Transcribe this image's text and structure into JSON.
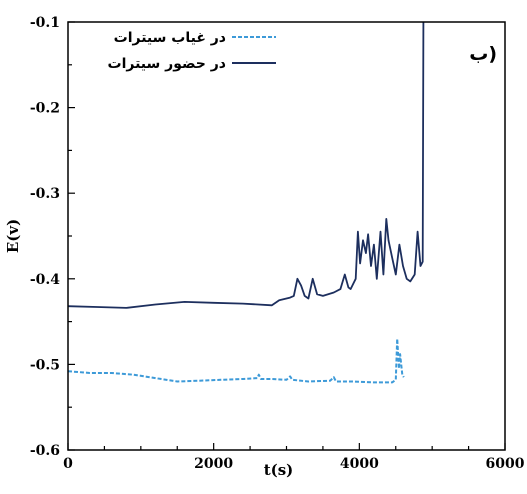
{
  "chart_data": {
    "type": "line",
    "panel_label": "ب)",
    "xlabel": "t(s)",
    "ylabel": "E(v)",
    "xlim": [
      0,
      6000
    ],
    "ylim": [
      -0.6,
      -0.1
    ],
    "x_ticks": [
      "0",
      "2000",
      "4000",
      "6000"
    ],
    "y_ticks": [
      "-0.1",
      "-0.2",
      "-0.3",
      "-0.4",
      "-0.5",
      "-0.6"
    ],
    "legend_position": "top-left",
    "grid": false,
    "series": [
      {
        "name": "در غیاب سیترات",
        "color": "#3d9ad8",
        "dash": "dashed",
        "points": [
          [
            0,
            -0.508
          ],
          [
            300,
            -0.51
          ],
          [
            600,
            -0.51
          ],
          [
            900,
            -0.512
          ],
          [
            1200,
            -0.516
          ],
          [
            1500,
            -0.52
          ],
          [
            1800,
            -0.519
          ],
          [
            2100,
            -0.518
          ],
          [
            2400,
            -0.517
          ],
          [
            2600,
            -0.516
          ],
          [
            2620,
            -0.512
          ],
          [
            2650,
            -0.517
          ],
          [
            2800,
            -0.517
          ],
          [
            3000,
            -0.518
          ],
          [
            3050,
            -0.514
          ],
          [
            3080,
            -0.518
          ],
          [
            3300,
            -0.52
          ],
          [
            3600,
            -0.519
          ],
          [
            3650,
            -0.515
          ],
          [
            3680,
            -0.52
          ],
          [
            3900,
            -0.52
          ],
          [
            4200,
            -0.521
          ],
          [
            4450,
            -0.521
          ],
          [
            4500,
            -0.518
          ],
          [
            4520,
            -0.47
          ],
          [
            4545,
            -0.505
          ],
          [
            4560,
            -0.488
          ],
          [
            4590,
            -0.512
          ],
          [
            4610,
            -0.515
          ]
        ]
      },
      {
        "name": "در حضور سیترات",
        "color": "#1d2f5e",
        "dash": "solid",
        "points": [
          [
            0,
            -0.432
          ],
          [
            400,
            -0.433
          ],
          [
            800,
            -0.434
          ],
          [
            1200,
            -0.43
          ],
          [
            1600,
            -0.427
          ],
          [
            2000,
            -0.428
          ],
          [
            2400,
            -0.429
          ],
          [
            2800,
            -0.431
          ],
          [
            2900,
            -0.425
          ],
          [
            3050,
            -0.422
          ],
          [
            3100,
            -0.42
          ],
          [
            3150,
            -0.4
          ],
          [
            3200,
            -0.408
          ],
          [
            3250,
            -0.42
          ],
          [
            3300,
            -0.423
          ],
          [
            3360,
            -0.4
          ],
          [
            3420,
            -0.418
          ],
          [
            3500,
            -0.42
          ],
          [
            3650,
            -0.416
          ],
          [
            3740,
            -0.412
          ],
          [
            3800,
            -0.395
          ],
          [
            3850,
            -0.41
          ],
          [
            3880,
            -0.412
          ],
          [
            3950,
            -0.4
          ],
          [
            3980,
            -0.345
          ],
          [
            4010,
            -0.382
          ],
          [
            4050,
            -0.355
          ],
          [
            4090,
            -0.37
          ],
          [
            4120,
            -0.348
          ],
          [
            4160,
            -0.385
          ],
          [
            4200,
            -0.36
          ],
          [
            4240,
            -0.4
          ],
          [
            4290,
            -0.345
          ],
          [
            4330,
            -0.395
          ],
          [
            4370,
            -0.33
          ],
          [
            4400,
            -0.355
          ],
          [
            4450,
            -0.375
          ],
          [
            4500,
            -0.395
          ],
          [
            4550,
            -0.36
          ],
          [
            4600,
            -0.385
          ],
          [
            4650,
            -0.4
          ],
          [
            4700,
            -0.403
          ],
          [
            4760,
            -0.395
          ],
          [
            4800,
            -0.345
          ],
          [
            4840,
            -0.385
          ],
          [
            4870,
            -0.38
          ],
          [
            4880,
            -0.1
          ],
          [
            4890,
            -0.1
          ]
        ]
      }
    ]
  }
}
